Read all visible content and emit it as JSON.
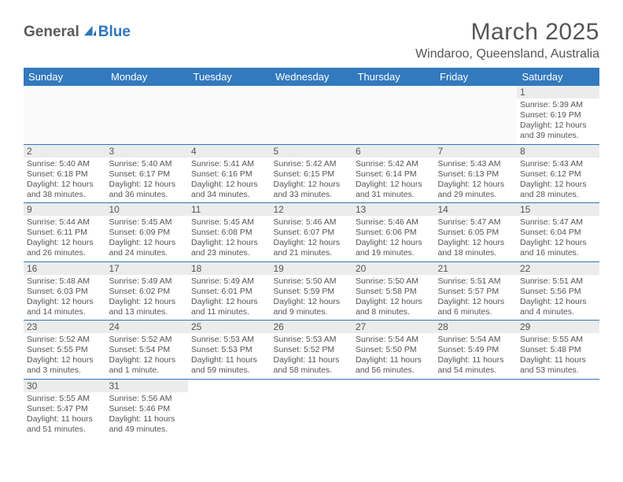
{
  "brand": {
    "general": "General",
    "blue": "Blue",
    "general_color": "#5a5a5a",
    "blue_color": "#2f76bc",
    "icon_fill": "#2f76bc"
  },
  "header": {
    "title": "March 2025",
    "location": "Windaroo, Queensland, Australia"
  },
  "colors": {
    "header_bg": "#3279be",
    "header_text": "#ffffff",
    "grid_line": "#2f76bc",
    "daynum_bg": "#ececec",
    "text": "#555555",
    "body_bg": "#ffffff"
  },
  "days_of_week": [
    "Sunday",
    "Monday",
    "Tuesday",
    "Wednesday",
    "Thursday",
    "Friday",
    "Saturday"
  ],
  "calendar": {
    "leading_blanks": 6,
    "trailing_blanks": 5,
    "days": [
      {
        "num": "1",
        "sunrise": "Sunrise: 5:39 AM",
        "sunset": "Sunset: 6:19 PM",
        "daylight1": "Daylight: 12 hours",
        "daylight2": "and 39 minutes."
      },
      {
        "num": "2",
        "sunrise": "Sunrise: 5:40 AM",
        "sunset": "Sunset: 6:18 PM",
        "daylight1": "Daylight: 12 hours",
        "daylight2": "and 38 minutes."
      },
      {
        "num": "3",
        "sunrise": "Sunrise: 5:40 AM",
        "sunset": "Sunset: 6:17 PM",
        "daylight1": "Daylight: 12 hours",
        "daylight2": "and 36 minutes."
      },
      {
        "num": "4",
        "sunrise": "Sunrise: 5:41 AM",
        "sunset": "Sunset: 6:16 PM",
        "daylight1": "Daylight: 12 hours",
        "daylight2": "and 34 minutes."
      },
      {
        "num": "5",
        "sunrise": "Sunrise: 5:42 AM",
        "sunset": "Sunset: 6:15 PM",
        "daylight1": "Daylight: 12 hours",
        "daylight2": "and 33 minutes."
      },
      {
        "num": "6",
        "sunrise": "Sunrise: 5:42 AM",
        "sunset": "Sunset: 6:14 PM",
        "daylight1": "Daylight: 12 hours",
        "daylight2": "and 31 minutes."
      },
      {
        "num": "7",
        "sunrise": "Sunrise: 5:43 AM",
        "sunset": "Sunset: 6:13 PM",
        "daylight1": "Daylight: 12 hours",
        "daylight2": "and 29 minutes."
      },
      {
        "num": "8",
        "sunrise": "Sunrise: 5:43 AM",
        "sunset": "Sunset: 6:12 PM",
        "daylight1": "Daylight: 12 hours",
        "daylight2": "and 28 minutes."
      },
      {
        "num": "9",
        "sunrise": "Sunrise: 5:44 AM",
        "sunset": "Sunset: 6:11 PM",
        "daylight1": "Daylight: 12 hours",
        "daylight2": "and 26 minutes."
      },
      {
        "num": "10",
        "sunrise": "Sunrise: 5:45 AM",
        "sunset": "Sunset: 6:09 PM",
        "daylight1": "Daylight: 12 hours",
        "daylight2": "and 24 minutes."
      },
      {
        "num": "11",
        "sunrise": "Sunrise: 5:45 AM",
        "sunset": "Sunset: 6:08 PM",
        "daylight1": "Daylight: 12 hours",
        "daylight2": "and 23 minutes."
      },
      {
        "num": "12",
        "sunrise": "Sunrise: 5:46 AM",
        "sunset": "Sunset: 6:07 PM",
        "daylight1": "Daylight: 12 hours",
        "daylight2": "and 21 minutes."
      },
      {
        "num": "13",
        "sunrise": "Sunrise: 5:46 AM",
        "sunset": "Sunset: 6:06 PM",
        "daylight1": "Daylight: 12 hours",
        "daylight2": "and 19 minutes."
      },
      {
        "num": "14",
        "sunrise": "Sunrise: 5:47 AM",
        "sunset": "Sunset: 6:05 PM",
        "daylight1": "Daylight: 12 hours",
        "daylight2": "and 18 minutes."
      },
      {
        "num": "15",
        "sunrise": "Sunrise: 5:47 AM",
        "sunset": "Sunset: 6:04 PM",
        "daylight1": "Daylight: 12 hours",
        "daylight2": "and 16 minutes."
      },
      {
        "num": "16",
        "sunrise": "Sunrise: 5:48 AM",
        "sunset": "Sunset: 6:03 PM",
        "daylight1": "Daylight: 12 hours",
        "daylight2": "and 14 minutes."
      },
      {
        "num": "17",
        "sunrise": "Sunrise: 5:49 AM",
        "sunset": "Sunset: 6:02 PM",
        "daylight1": "Daylight: 12 hours",
        "daylight2": "and 13 minutes."
      },
      {
        "num": "18",
        "sunrise": "Sunrise: 5:49 AM",
        "sunset": "Sunset: 6:01 PM",
        "daylight1": "Daylight: 12 hours",
        "daylight2": "and 11 minutes."
      },
      {
        "num": "19",
        "sunrise": "Sunrise: 5:50 AM",
        "sunset": "Sunset: 5:59 PM",
        "daylight1": "Daylight: 12 hours",
        "daylight2": "and 9 minutes."
      },
      {
        "num": "20",
        "sunrise": "Sunrise: 5:50 AM",
        "sunset": "Sunset: 5:58 PM",
        "daylight1": "Daylight: 12 hours",
        "daylight2": "and 8 minutes."
      },
      {
        "num": "21",
        "sunrise": "Sunrise: 5:51 AM",
        "sunset": "Sunset: 5:57 PM",
        "daylight1": "Daylight: 12 hours",
        "daylight2": "and 6 minutes."
      },
      {
        "num": "22",
        "sunrise": "Sunrise: 5:51 AM",
        "sunset": "Sunset: 5:56 PM",
        "daylight1": "Daylight: 12 hours",
        "daylight2": "and 4 minutes."
      },
      {
        "num": "23",
        "sunrise": "Sunrise: 5:52 AM",
        "sunset": "Sunset: 5:55 PM",
        "daylight1": "Daylight: 12 hours",
        "daylight2": "and 3 minutes."
      },
      {
        "num": "24",
        "sunrise": "Sunrise: 5:52 AM",
        "sunset": "Sunset: 5:54 PM",
        "daylight1": "Daylight: 12 hours",
        "daylight2": "and 1 minute."
      },
      {
        "num": "25",
        "sunrise": "Sunrise: 5:53 AM",
        "sunset": "Sunset: 5:53 PM",
        "daylight1": "Daylight: 11 hours",
        "daylight2": "and 59 minutes."
      },
      {
        "num": "26",
        "sunrise": "Sunrise: 5:53 AM",
        "sunset": "Sunset: 5:52 PM",
        "daylight1": "Daylight: 11 hours",
        "daylight2": "and 58 minutes."
      },
      {
        "num": "27",
        "sunrise": "Sunrise: 5:54 AM",
        "sunset": "Sunset: 5:50 PM",
        "daylight1": "Daylight: 11 hours",
        "daylight2": "and 56 minutes."
      },
      {
        "num": "28",
        "sunrise": "Sunrise: 5:54 AM",
        "sunset": "Sunset: 5:49 PM",
        "daylight1": "Daylight: 11 hours",
        "daylight2": "and 54 minutes."
      },
      {
        "num": "29",
        "sunrise": "Sunrise: 5:55 AM",
        "sunset": "Sunset: 5:48 PM",
        "daylight1": "Daylight: 11 hours",
        "daylight2": "and 53 minutes."
      },
      {
        "num": "30",
        "sunrise": "Sunrise: 5:55 AM",
        "sunset": "Sunset: 5:47 PM",
        "daylight1": "Daylight: 11 hours",
        "daylight2": "and 51 minutes."
      },
      {
        "num": "31",
        "sunrise": "Sunrise: 5:56 AM",
        "sunset": "Sunset: 5:46 PM",
        "daylight1": "Daylight: 11 hours",
        "daylight2": "and 49 minutes."
      }
    ]
  }
}
